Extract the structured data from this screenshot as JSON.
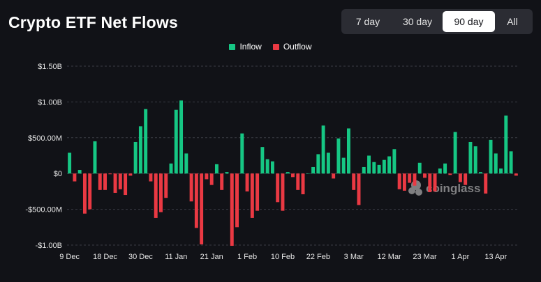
{
  "header": {
    "title": "Crypto ETF Net Flows"
  },
  "range_selector": {
    "options": [
      "7 day",
      "30 day",
      "90 day",
      "All"
    ],
    "selected": "90 day"
  },
  "legend": {
    "inflow_label": "Inflow",
    "outflow_label": "Outflow"
  },
  "watermark": "coinglass",
  "colors": {
    "inflow": "#16c784",
    "outflow": "#ea3943",
    "grid": "#3a3c45",
    "background": "#111217"
  },
  "chart_data": {
    "type": "bar",
    "title": "Crypto ETF Net Flows",
    "xlabel": "",
    "ylabel": "",
    "ylim": [
      -1000,
      1500
    ],
    "units": "millions USD",
    "y_ticks": [
      {
        "value": 1500,
        "label": "$1.50B"
      },
      {
        "value": 1000,
        "label": "$1.00B"
      },
      {
        "value": 500,
        "label": "$500.00M"
      },
      {
        "value": 0,
        "label": "$0"
      },
      {
        "value": -500,
        "label": "-$500.00M"
      },
      {
        "value": -1000,
        "label": "-$1.00B"
      }
    ],
    "x_ticks": [
      {
        "index": 0,
        "label": "9 Dec"
      },
      {
        "index": 7,
        "label": "18 Dec"
      },
      {
        "index": 14,
        "label": "30 Dec"
      },
      {
        "index": 21,
        "label": "11 Jan"
      },
      {
        "index": 28,
        "label": "21 Jan"
      },
      {
        "index": 35,
        "label": "1 Feb"
      },
      {
        "index": 42,
        "label": "10 Feb"
      },
      {
        "index": 49,
        "label": "22 Feb"
      },
      {
        "index": 56,
        "label": "3 Mar"
      },
      {
        "index": 63,
        "label": "12 Mar"
      },
      {
        "index": 70,
        "label": "23 Mar"
      },
      {
        "index": 77,
        "label": "1 Apr"
      },
      {
        "index": 84,
        "label": "13 Apr"
      }
    ],
    "series": [
      {
        "name": "Net Flow",
        "values": [
          290,
          -110,
          50,
          -560,
          -500,
          450,
          -230,
          -230,
          -10,
          -270,
          -220,
          -300,
          -30,
          440,
          660,
          900,
          -110,
          -620,
          -540,
          -340,
          140,
          890,
          1020,
          280,
          -390,
          -760,
          -990,
          -80,
          -160,
          130,
          -230,
          20,
          -1010,
          -750,
          560,
          -250,
          -620,
          -520,
          370,
          200,
          170,
          -400,
          -520,
          20,
          -50,
          -230,
          -290,
          0,
          90,
          270,
          670,
          290,
          -70,
          490,
          220,
          630,
          -230,
          -440,
          90,
          250,
          160,
          120,
          190,
          240,
          340,
          -220,
          -240,
          -130,
          -170,
          150,
          -60,
          -260,
          -250,
          70,
          140,
          -20,
          580,
          -120,
          -160,
          440,
          380,
          20,
          -280,
          470,
          280,
          70,
          810,
          310,
          -30
        ]
      }
    ]
  }
}
